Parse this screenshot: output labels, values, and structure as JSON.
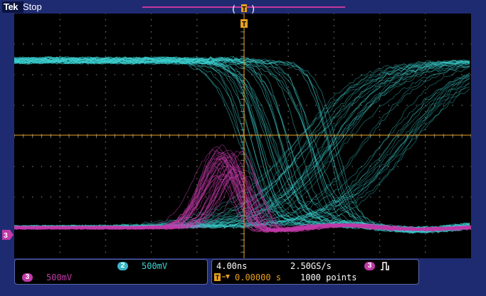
{
  "header": {
    "brand": "Tek",
    "acquisition_status": "Stop",
    "trigger_marker": "T"
  },
  "channels": {
    "ch2": {
      "number": "2",
      "scale": "500mV",
      "color": "#3ed6d6"
    },
    "ch3": {
      "number": "3",
      "scale": "500mV",
      "color": "#c13aa8"
    }
  },
  "timebase": {
    "horizontal_scale": "4.00ns",
    "sample_rate": "2.50GS/s",
    "record_length": "1000 points",
    "trigger_delay": "0.00000 s"
  },
  "trigger": {
    "source_channel": "3",
    "type_icon": "pulse-trigger-icon"
  },
  "colors": {
    "background": "#1f2b71",
    "graticule": "#6f6f6f",
    "trigger_orange": "#e8a020",
    "ch2_trace": "#3ed6d6",
    "ch3_trace": "#c13aa8"
  }
}
